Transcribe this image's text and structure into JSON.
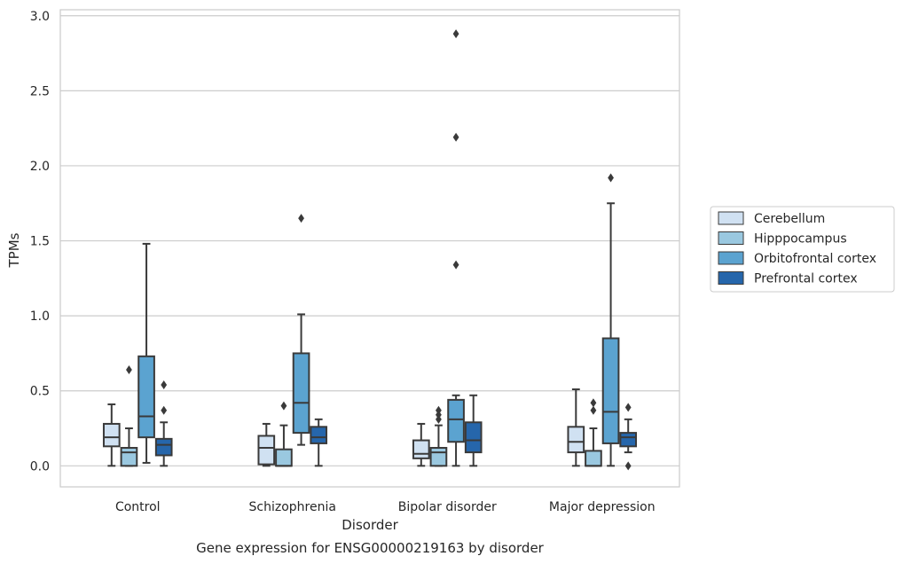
{
  "chart_data": {
    "type": "boxplot",
    "caption": "Gene expression for ENSG00000219163 by disorder",
    "xlabel": "Disorder",
    "ylabel": "TPMs",
    "ylim": [
      -0.14,
      3.04
    ],
    "yticks": [
      0.0,
      0.5,
      1.0,
      1.5,
      2.0,
      2.5,
      3.0
    ],
    "ytick_labels": [
      "0.0",
      "0.5",
      "1.0",
      "1.5",
      "2.0",
      "2.5",
      "3.0"
    ],
    "grid": "horizontal",
    "legend_position": "right",
    "categories": [
      "Control",
      "Schizophrenia",
      "Bipolar disorder",
      "Major depression"
    ],
    "series": [
      {
        "name": "Cerebellum",
        "color": "#d0e1f2",
        "boxes": [
          {
            "whislo": 0.0,
            "q1": 0.13,
            "med": 0.19,
            "q3": 0.28,
            "whishi": 0.41,
            "fliers": []
          },
          {
            "whislo": 0.0,
            "q1": 0.01,
            "med": 0.12,
            "q3": 0.2,
            "whishi": 0.28,
            "fliers": []
          },
          {
            "whislo": 0.0,
            "q1": 0.05,
            "med": 0.08,
            "q3": 0.17,
            "whishi": 0.28,
            "fliers": []
          },
          {
            "whislo": 0.0,
            "q1": 0.09,
            "med": 0.16,
            "q3": 0.26,
            "whishi": 0.51,
            "fliers": []
          }
        ]
      },
      {
        "name": "Hipppocampus",
        "color": "#9ac8e0",
        "boxes": [
          {
            "whislo": 0.0,
            "q1": 0.0,
            "med": 0.09,
            "q3": 0.12,
            "whishi": 0.25,
            "fliers": [
              0.64
            ]
          },
          {
            "whislo": 0.0,
            "q1": 0.0,
            "med": 0.0,
            "q3": 0.11,
            "whishi": 0.27,
            "fliers": [
              0.4
            ]
          },
          {
            "whislo": 0.0,
            "q1": 0.0,
            "med": 0.09,
            "q3": 0.12,
            "whishi": 0.27,
            "fliers": [
              0.31,
              0.34,
              0.37
            ]
          },
          {
            "whislo": 0.0,
            "q1": 0.0,
            "med": 0.0,
            "q3": 0.1,
            "whishi": 0.25,
            "fliers": [
              0.37,
              0.42
            ]
          }
        ]
      },
      {
        "name": "Orbitofrontal cortex",
        "color": "#5ba3d0",
        "boxes": [
          {
            "whislo": 0.02,
            "q1": 0.19,
            "med": 0.33,
            "q3": 0.73,
            "whishi": 1.48,
            "fliers": []
          },
          {
            "whislo": 0.14,
            "q1": 0.22,
            "med": 0.42,
            "q3": 0.75,
            "whishi": 1.01,
            "fliers": [
              1.65
            ]
          },
          {
            "whislo": 0.0,
            "q1": 0.16,
            "med": 0.31,
            "q3": 0.44,
            "whishi": 0.47,
            "fliers": [
              1.34,
              2.19,
              2.88
            ]
          },
          {
            "whislo": 0.0,
            "q1": 0.15,
            "med": 0.36,
            "q3": 0.85,
            "whishi": 1.75,
            "fliers": [
              1.92
            ]
          }
        ]
      },
      {
        "name": "Prefrontal cortex",
        "color": "#2666ab",
        "boxes": [
          {
            "whislo": 0.0,
            "q1": 0.07,
            "med": 0.14,
            "q3": 0.18,
            "whishi": 0.29,
            "fliers": [
              0.37,
              0.54
            ]
          },
          {
            "whislo": 0.0,
            "q1": 0.15,
            "med": 0.19,
            "q3": 0.26,
            "whishi": 0.31,
            "fliers": []
          },
          {
            "whislo": 0.0,
            "q1": 0.09,
            "med": 0.17,
            "q3": 0.29,
            "whishi": 0.47,
            "fliers": []
          },
          {
            "whislo": 0.09,
            "q1": 0.13,
            "med": 0.19,
            "q3": 0.22,
            "whishi": 0.31,
            "fliers": [
              0.0,
              0.39
            ]
          }
        ]
      }
    ]
  }
}
